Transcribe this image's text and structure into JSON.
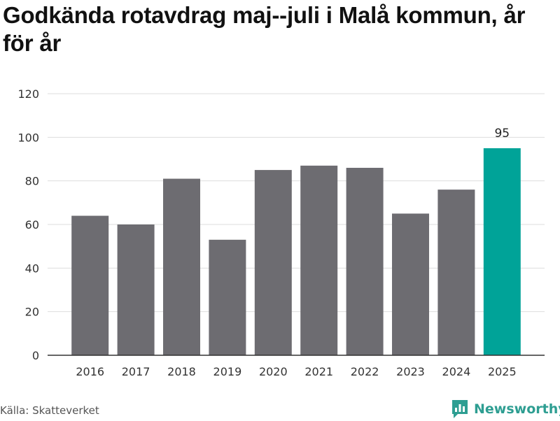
{
  "page": {
    "title": "Godkända rotavdrag maj--juli i Malå kommun, år för år",
    "source": "Källa: Skatteverket",
    "brand": "Newsworthy",
    "brand_icon": "newsworthy-logo-icon"
  },
  "colors": {
    "bar": "#6d6c71",
    "highlight": "#00a398",
    "grid": "#dddddd",
    "axis": "#333333",
    "brand": "#2e9e92"
  },
  "chart_data": {
    "type": "bar",
    "title": "Godkända rotavdrag maj--juli i Malå kommun, år för år",
    "xlabel": "",
    "ylabel": "",
    "categories": [
      "2016",
      "2017",
      "2018",
      "2019",
      "2020",
      "2021",
      "2022",
      "2023",
      "2024",
      "2025"
    ],
    "values": [
      64,
      60,
      81,
      53,
      85,
      87,
      86,
      65,
      76,
      95
    ],
    "ylim": [
      0,
      120
    ],
    "yticks": [
      0,
      20,
      40,
      60,
      80,
      100,
      120
    ],
    "grid": true,
    "highlight": {
      "category": "2025",
      "label": "95"
    }
  }
}
